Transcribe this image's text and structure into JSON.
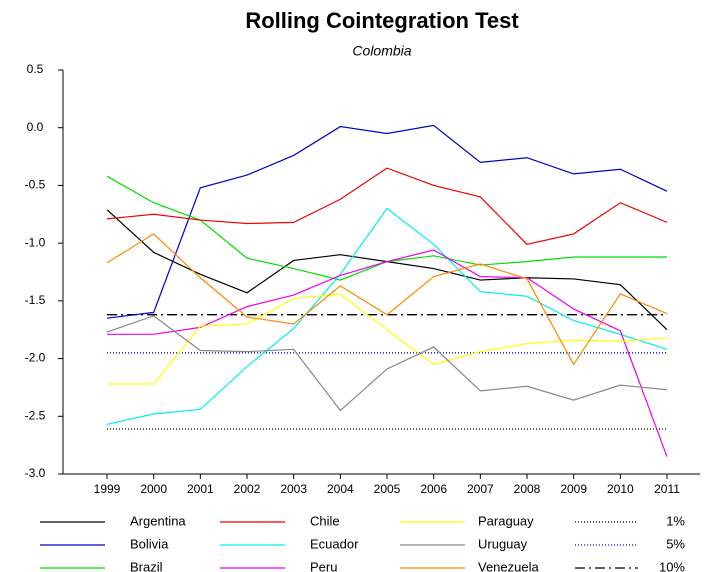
{
  "chart_data": {
    "type": "line",
    "title": "Rolling Cointegration Test",
    "subtitle": "Colombia",
    "categories": [
      "1999",
      "2000",
      "2001",
      "2002",
      "2003",
      "2004",
      "2005",
      "2006",
      "2007",
      "2008",
      "2009",
      "2010",
      "2011"
    ],
    "ylim": [
      -3.0,
      0.5
    ],
    "yticks": [
      0.5,
      {
        "value": 0,
        "label": "0.0"
      },
      -0.5,
      {
        "value": -1,
        "label": "-1.0"
      },
      -1.5,
      {
        "value": -2,
        "label": "-2.0"
      },
      -2.5,
      {
        "value": -3,
        "label": "-3.0"
      }
    ],
    "series": [
      {
        "name": "Argentina",
        "color": "#000000",
        "values": [
          -0.71,
          -1.08,
          -1.27,
          -1.43,
          -1.15,
          -1.1,
          -1.16,
          -1.22,
          -1.32,
          -1.3,
          -1.31,
          -1.36,
          -1.75
        ]
      },
      {
        "name": "Bolivia",
        "color": "#0000cc",
        "values": [
          -1.65,
          -1.6,
          -0.52,
          -0.41,
          -0.24,
          0.01,
          -0.05,
          0.02,
          -0.3,
          -0.26,
          -0.4,
          -0.36,
          -0.55
        ]
      },
      {
        "name": "Brazil",
        "color": "#00dd00",
        "values": [
          -0.42,
          -0.65,
          -0.8,
          -1.13,
          -1.22,
          -1.32,
          -1.16,
          -1.11,
          -1.19,
          -1.16,
          -1.12,
          -1.12,
          -1.12
        ]
      },
      {
        "name": "Chile",
        "color": "#ee0000",
        "values": [
          -0.79,
          -0.75,
          -0.8,
          -0.83,
          -0.82,
          -0.62,
          -0.35,
          -0.5,
          -0.6,
          -1.01,
          -0.92,
          -0.65,
          -0.82
        ]
      },
      {
        "name": "Ecuador",
        "color": "#00eeee",
        "values": [
          -2.57,
          -2.48,
          -2.44,
          -2.07,
          -1.74,
          -1.27,
          -0.7,
          -1.01,
          -1.42,
          -1.46,
          -1.67,
          -1.79,
          -1.92
        ]
      },
      {
        "name": "Peru",
        "color": "#ee00ee",
        "values": [
          -1.79,
          -1.79,
          -1.73,
          -1.55,
          -1.45,
          -1.28,
          -1.16,
          -1.06,
          -1.29,
          -1.3,
          -1.57,
          -1.76,
          -2.85
        ]
      },
      {
        "name": "Paraguay",
        "color": "#ffff00",
        "values": [
          -2.22,
          -2.22,
          -1.72,
          -1.7,
          -1.48,
          -1.44,
          -1.75,
          -2.05,
          -1.94,
          -1.87,
          -1.84,
          -1.85,
          -1.82
        ]
      },
      {
        "name": "Uruguay",
        "color": "#888888",
        "values": [
          -1.77,
          -1.63,
          -1.93,
          -1.94,
          -1.92,
          -2.45,
          -2.09,
          -1.9,
          -2.28,
          -2.24,
          -2.36,
          -2.23,
          -2.27
        ]
      },
      {
        "name": "Venezuela",
        "color": "#ff8800",
        "values": [
          -1.17,
          -0.92,
          -1.3,
          -1.64,
          -1.7,
          -1.37,
          -1.62,
          -1.29,
          -1.18,
          -1.31,
          -2.05,
          -1.44,
          -1.61
        ]
      }
    ],
    "reference_lines": [
      {
        "name": "1%",
        "value": -2.61,
        "color": "#000000",
        "dash": "1,2"
      },
      {
        "name": "5%",
        "value": -1.95,
        "color": "#0000cc",
        "dash": "1,2"
      },
      {
        "name": "10%",
        "value": -1.62,
        "color": "#000000",
        "dash": "10,4,2,4"
      }
    ]
  }
}
